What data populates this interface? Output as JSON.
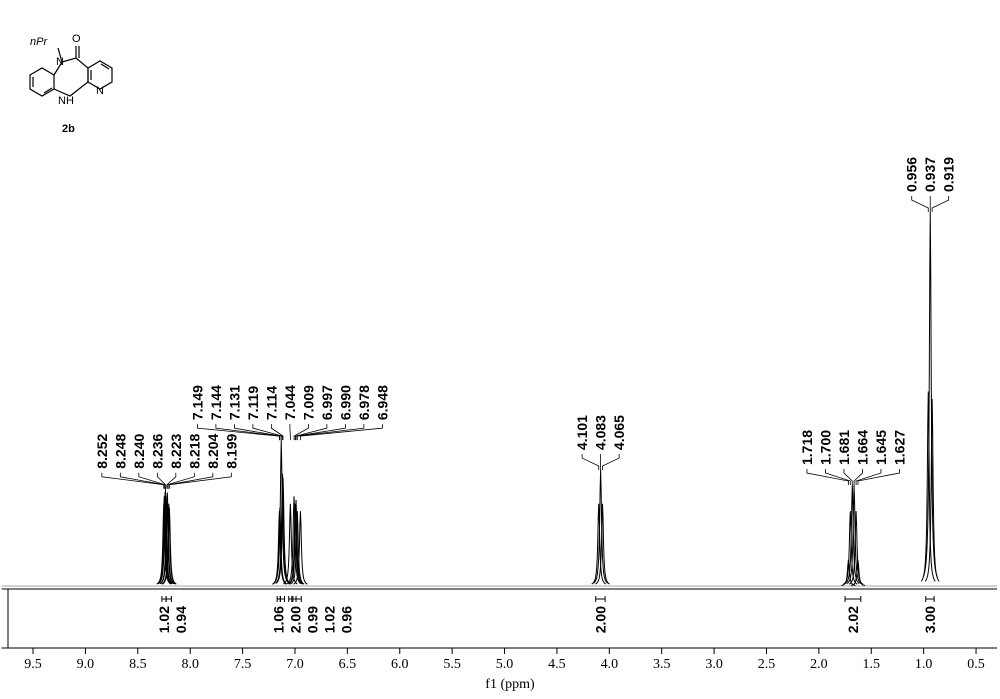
{
  "chart_data": {
    "type": "nmr",
    "x_label": "f1 (ppm)",
    "xlim": [
      9.8,
      0.3
    ],
    "xticks": [
      9.5,
      {
        "value": 9,
        "label": "9.0"
      },
      8.5,
      {
        "value": 8,
        "label": "8.0"
      },
      7.5,
      {
        "value": 7,
        "label": "7.0"
      },
      6.5,
      {
        "value": 6,
        "label": "6.0"
      },
      5.5,
      {
        "value": 5,
        "label": "5.0"
      },
      4.5,
      {
        "value": 4,
        "label": "4.0"
      },
      3.5,
      {
        "value": 3,
        "label": "3.0"
      },
      2.5,
      {
        "value": 2,
        "label": "2.0"
      },
      1.5,
      {
        "value": 1,
        "label": "1.0"
      },
      0.5
    ],
    "color": "#000000",
    "peak_groups": [
      {
        "ppm": [
          8.252,
          8.248,
          8.24,
          8.236,
          8.223,
          8.218,
          8.204,
          8.199
        ],
        "heights": [
          0.22,
          0.24,
          0.25,
          0.26,
          0.24,
          0.25,
          0.22,
          0.21
        ]
      },
      {
        "ppm": [
          7.149,
          7.144,
          7.131,
          7.119,
          7.114,
          7.044,
          7.009,
          6.997,
          6.99,
          6.978,
          6.948
        ],
        "heights": [
          0.2,
          0.21,
          0.39,
          0.3,
          0.29,
          0.22,
          0.24,
          0.22,
          0.23,
          0.2,
          0.2
        ]
      },
      {
        "ppm": [
          4.101,
          4.083,
          4.065
        ],
        "heights": [
          0.22,
          0.31,
          0.22
        ]
      },
      {
        "ppm": [
          1.718,
          1.7,
          1.681,
          1.664,
          1.645,
          1.627
        ],
        "heights": [
          0.07,
          0.2,
          0.27,
          0.27,
          0.2,
          0.07
        ]
      },
      {
        "ppm": [
          0.956,
          0.937,
          0.919
        ],
        "heights": [
          0.52,
          1.0,
          0.5
        ]
      }
    ],
    "integrals": [
      {
        "range": [
          8.27,
          8.23
        ],
        "value": 1.02
      },
      {
        "range": [
          8.23,
          8.18
        ],
        "value": 0.94
      },
      {
        "range": [
          7.17,
          7.14
        ],
        "value": 1.06
      },
      {
        "range": [
          7.14,
          7.1
        ],
        "value": 2.0
      },
      {
        "range": [
          7.06,
          7.03
        ],
        "value": 0.99
      },
      {
        "range": [
          7.02,
          6.99
        ],
        "value": 1.02
      },
      {
        "range": [
          6.99,
          6.94
        ],
        "value": 0.96
      },
      {
        "range": [
          4.13,
          4.04
        ],
        "value": 2.0
      },
      {
        "range": [
          1.75,
          1.6
        ],
        "value": 2.02
      },
      {
        "range": [
          0.98,
          0.9
        ],
        "value": 3.0
      }
    ],
    "structure": {
      "substituent": "nPr",
      "oxygen": "O",
      "amide_n": "N",
      "ring_n": "N",
      "amine": "H",
      "amine_n": "N",
      "compound": "2b"
    }
  }
}
